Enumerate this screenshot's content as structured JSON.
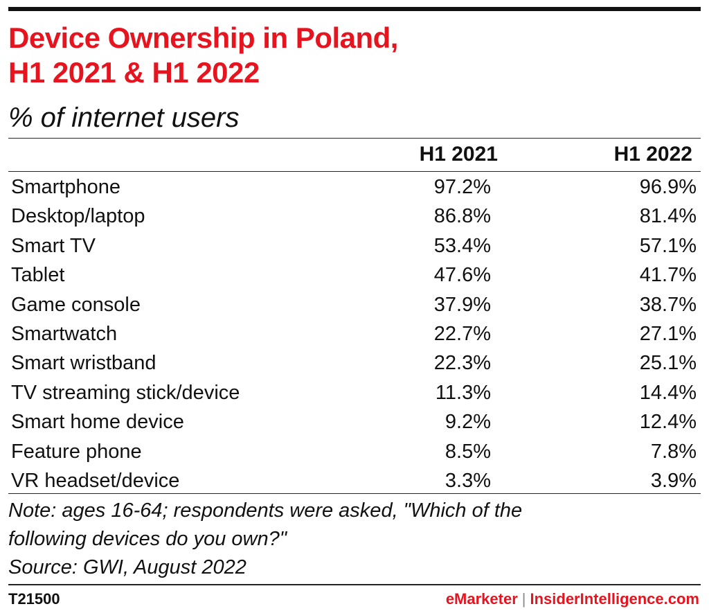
{
  "header": {
    "title_line1": "Device Ownership in Poland,",
    "title_line2": "H1 2021 & H1 2022",
    "subtitle": "% of internet users"
  },
  "chart_data": {
    "type": "table",
    "title": "Device Ownership in Poland, H1 2021 & H1 2022",
    "subtitle": "% of internet users",
    "columns": [
      "H1 2021",
      "H1 2022"
    ],
    "rows": [
      {
        "label": "Smartphone",
        "values": [
          "97.2%",
          "96.9%"
        ]
      },
      {
        "label": "Desktop/laptop",
        "values": [
          "86.8%",
          "81.4%"
        ]
      },
      {
        "label": "Smart TV",
        "values": [
          "53.4%",
          "57.1%"
        ]
      },
      {
        "label": "Tablet",
        "values": [
          "47.6%",
          "41.7%"
        ]
      },
      {
        "label": "Game console",
        "values": [
          "37.9%",
          "38.7%"
        ]
      },
      {
        "label": "Smartwatch",
        "values": [
          "22.7%",
          "27.1%"
        ]
      },
      {
        "label": "Smart wristband",
        "values": [
          "22.3%",
          "25.1%"
        ]
      },
      {
        "label": "TV streaming stick/device",
        "values": [
          "11.3%",
          "14.4%"
        ]
      },
      {
        "label": "Smart home device",
        "values": [
          "9.2%",
          "12.4%"
        ]
      },
      {
        "label": "Feature phone",
        "values": [
          "8.5%",
          "7.8%"
        ]
      },
      {
        "label": "VR headset/device",
        "values": [
          "3.3%",
          "3.9%"
        ]
      }
    ]
  },
  "note": {
    "line1": "Note: ages 16-64; respondents were asked, \"Which of the",
    "line2": "following devices do you own?\"",
    "line3": "Source: GWI, August 2022"
  },
  "footer": {
    "id": "T21500",
    "brand_a": "eMarketer",
    "separator": "|",
    "brand_b": "InsiderIntelligence.com"
  },
  "colors": {
    "accent": "#e5141f",
    "text": "#111111"
  }
}
